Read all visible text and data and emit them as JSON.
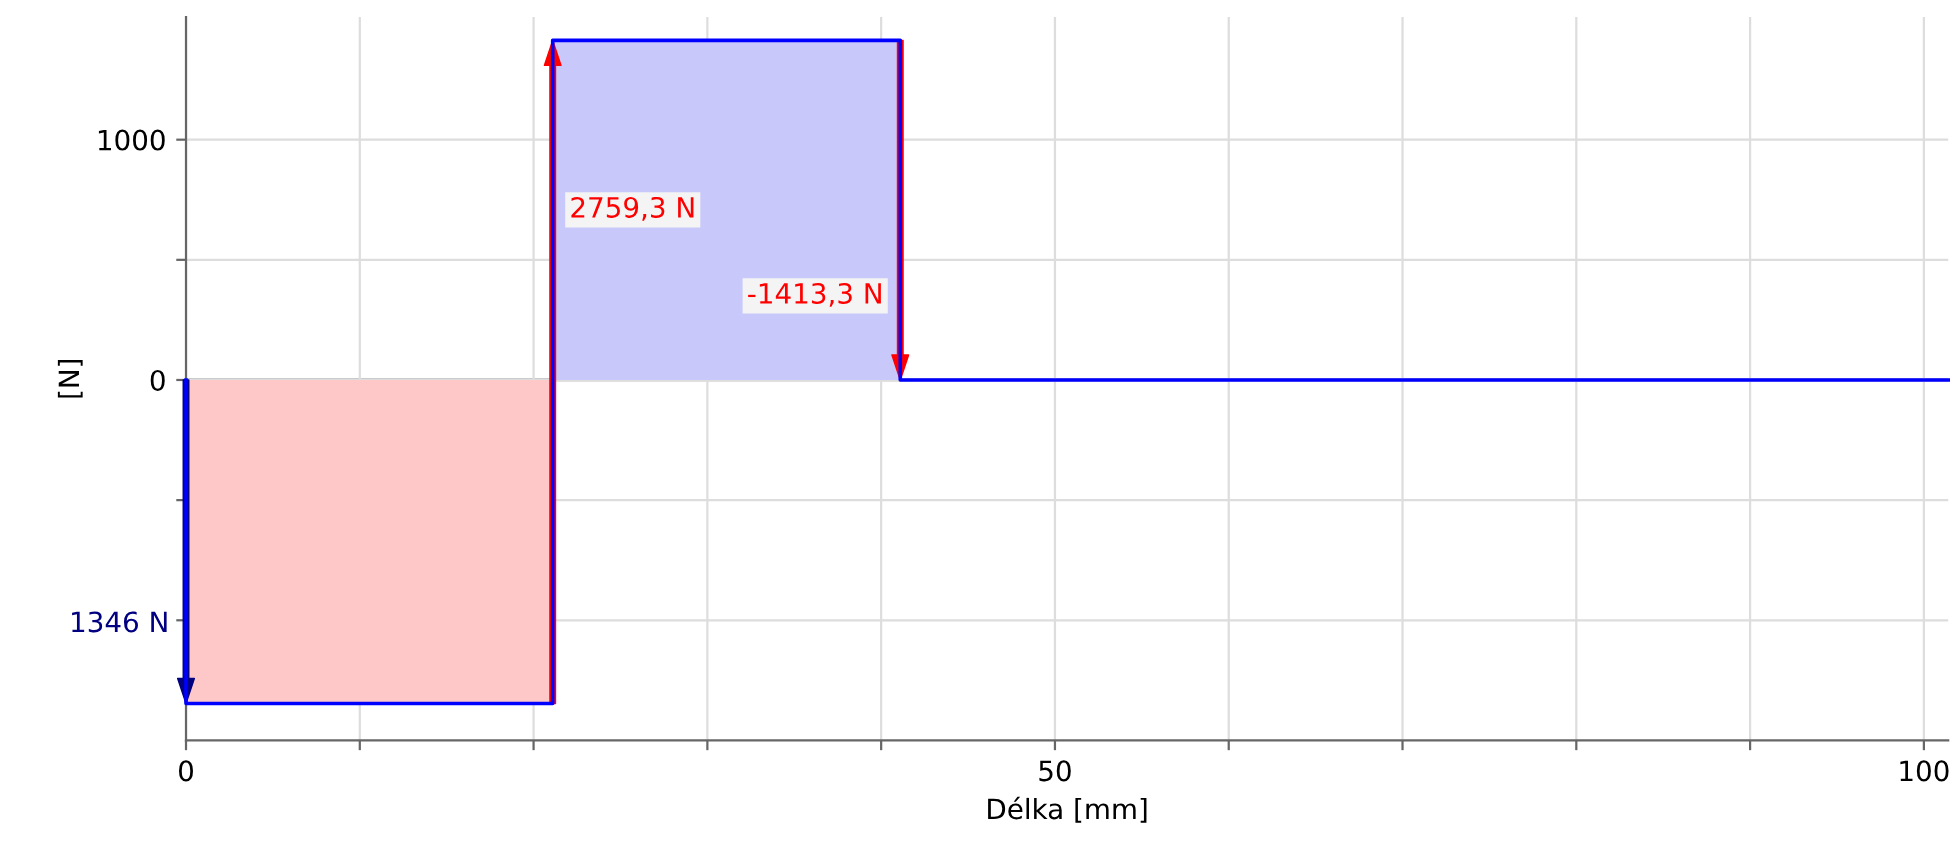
{
  "chart_data": {
    "type": "line",
    "xlabel": "Délka [mm]",
    "ylabel": "[N]",
    "xlim": [
      0,
      101.4
    ],
    "ylim": [
      -1500,
      1510
    ],
    "xticks": [
      0,
      {
        "value": 10,
        "label": null
      },
      {
        "value": 20,
        "label": null
      },
      {
        "value": 30,
        "label": null
      },
      {
        "value": 40,
        "label": null
      },
      50,
      {
        "value": 60,
        "label": null
      },
      {
        "value": 70,
        "label": null
      },
      {
        "value": 80,
        "label": null
      },
      {
        "value": 90,
        "label": null
      },
      100
    ],
    "yticks": [
      {
        "value": -1000,
        "label": null
      },
      {
        "value": -500,
        "label": null
      },
      0,
      {
        "value": 500,
        "label": null
      },
      1000
    ],
    "grid": true,
    "series": [
      {
        "type": "area",
        "color": "#ffc8c8",
        "x": [
          0,
          21.1
        ],
        "values": [
          -1346,
          -1346
        ]
      },
      {
        "type": "area",
        "color": "#c8c8fa",
        "x": [
          21.1,
          41.1
        ],
        "values": [
          1413.3,
          1413.3
        ]
      },
      {
        "color": "#0000ff",
        "colors": [
          "#0000ff",
          "#000080",
          "#0000ff",
          "#ff0000",
          "#0000ff",
          "#ff0000",
          "#0000ff"
        ],
        "x": [
          0,
          0,
          21.1,
          21.1,
          41.1,
          41.1,
          101.4
        ],
        "values": [
          0,
          -1346,
          -1346,
          1413.3,
          1413.3,
          0,
          0
        ]
      }
    ],
    "annotations": [
      {
        "text": "1346 N",
        "x": 0,
        "y": -1017
      },
      {
        "text": "2759,3 N",
        "x": 21.1,
        "y": 708
      },
      {
        "text": "-1413,3 N",
        "x": 41.1,
        "y": 350
      }
    ]
  }
}
